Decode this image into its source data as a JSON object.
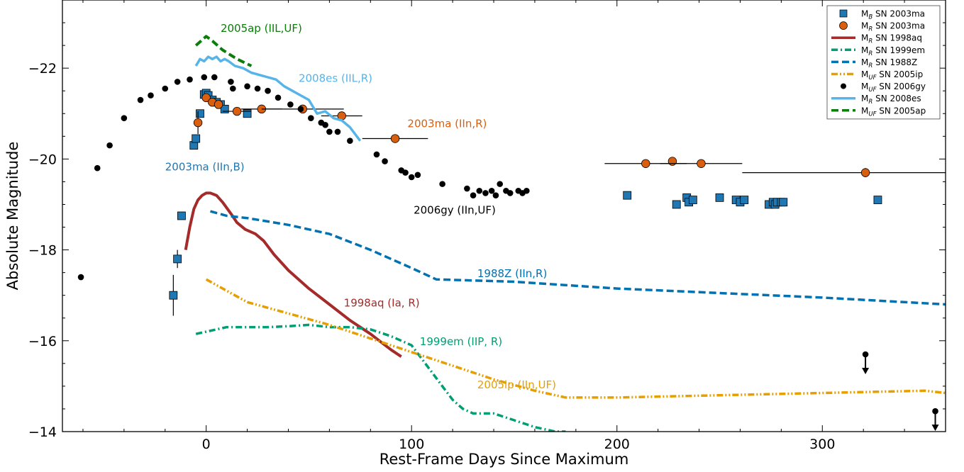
{
  "chart_data": {
    "type": "scatter",
    "xlabel": "Rest-Frame Days Since Maximum",
    "ylabel": "Absolute Magnitude",
    "xlim": [
      -70,
      360
    ],
    "ylim": [
      -14,
      -23.5
    ],
    "y_inverted": true,
    "xticks": [
      0,
      100,
      200,
      300
    ],
    "yticks": [
      -14,
      -16,
      -18,
      -20,
      -22
    ],
    "xtick_labels": [
      "0",
      "100",
      "200",
      "300"
    ],
    "ytick_labels": [
      "−14",
      "−16",
      "−18",
      "−20",
      "−22"
    ],
    "grid": false,
    "legend_position": "top-right",
    "series": [
      {
        "name": "M<sub>B</sub> SN 2003ma",
        "legend": {
          "main": "M",
          "sub": "B",
          "rest": " SN 2003ma"
        },
        "kind": "marker",
        "marker": "square",
        "color": "#1f77b4",
        "points": [
          {
            "x": -16,
            "y": -17.0,
            "yerr": 0.45
          },
          {
            "x": -14,
            "y": -17.8,
            "yerr": 0.2
          },
          {
            "x": -12,
            "y": -18.75
          },
          {
            "x": -6,
            "y": -20.3
          },
          {
            "x": -5,
            "y": -20.45
          },
          {
            "x": -3,
            "y": -21.0
          },
          {
            "x": -1,
            "y": -21.42
          },
          {
            "x": 0,
            "y": -21.45
          },
          {
            "x": 1,
            "y": -21.4
          },
          {
            "x": 3,
            "y": -21.3
          },
          {
            "x": 5,
            "y": -21.25
          },
          {
            "x": 7,
            "y": -21.2
          },
          {
            "x": 9,
            "y": -21.1
          },
          {
            "x": 20,
            "y": -21.0
          },
          {
            "x": 205,
            "y": -19.2
          },
          {
            "x": 229,
            "y": -19.0
          },
          {
            "x": 234,
            "y": -19.15
          },
          {
            "x": 235,
            "y": -19.05
          },
          {
            "x": 237,
            "y": -19.1
          },
          {
            "x": 250,
            "y": -19.15
          },
          {
            "x": 258,
            "y": -19.1
          },
          {
            "x": 260,
            "y": -19.05
          },
          {
            "x": 262,
            "y": -19.1
          },
          {
            "x": 274,
            "y": -19.0
          },
          {
            "x": 276,
            "y": -19.05
          },
          {
            "x": 277,
            "y": -19.0
          },
          {
            "x": 278,
            "y": -19.05
          },
          {
            "x": 280,
            "y": -19.05
          },
          {
            "x": 281,
            "y": -19.05
          },
          {
            "x": 327,
            "y": -19.1
          }
        ]
      },
      {
        "name": "M<sub>R</sub> SN 2003ma",
        "legend": {
          "main": "M",
          "sub": "R",
          "rest": " SN 2003ma"
        },
        "kind": "marker",
        "marker": "circle",
        "color": "#d95f0e",
        "points": [
          {
            "x": -4,
            "y": -20.8,
            "yerr": 0.25
          },
          {
            "x": 0,
            "y": -21.35
          },
          {
            "x": 3,
            "y": -21.25
          },
          {
            "x": 6,
            "y": -21.2
          },
          {
            "x": 15,
            "y": -21.05,
            "xerr": 7
          },
          {
            "x": 27,
            "y": -21.1,
            "xerr": 10
          },
          {
            "x": 47,
            "y": -21.1,
            "xerr": 20
          },
          {
            "x": 66,
            "y": -20.95,
            "xerr": 10
          },
          {
            "x": 92,
            "y": -20.45,
            "xerr": 16
          },
          {
            "x": 214,
            "y": -19.9,
            "xerr": 20
          },
          {
            "x": 227,
            "y": -19.95
          },
          {
            "x": 241,
            "y": -19.9,
            "xerr": 20
          },
          {
            "x": 321,
            "y": -19.7,
            "xerr": 60,
            "yerr": 0.1
          }
        ]
      },
      {
        "name": "M<sub>R</sub> SN 1998aq",
        "legend": {
          "main": "M",
          "sub": "R",
          "rest": " SN 1998aq"
        },
        "kind": "line",
        "dash": "solid",
        "width": 4,
        "color": "#a52a2a",
        "x": [
          -10,
          -8,
          -6,
          -4,
          -2,
          0,
          2,
          5,
          8,
          12,
          15,
          19,
          24,
          28,
          33,
          40,
          50,
          60,
          70,
          80,
          90,
          95
        ],
        "y": [
          -18.0,
          -18.5,
          -18.9,
          -19.1,
          -19.2,
          -19.25,
          -19.25,
          -19.2,
          -19.05,
          -18.8,
          -18.6,
          -18.45,
          -18.35,
          -18.2,
          -17.9,
          -17.55,
          -17.15,
          -16.8,
          -16.45,
          -16.15,
          -15.8,
          -15.65
        ]
      },
      {
        "name": "M<sub>R</sub> SN 1999em",
        "legend": {
          "main": "M",
          "sub": "R",
          "rest": " SN 1999em"
        },
        "kind": "line",
        "dash": "dashdot",
        "width": 3.5,
        "color": "#009e73",
        "x": [
          -5,
          0,
          5,
          10,
          20,
          30,
          40,
          50,
          60,
          70,
          80,
          90,
          100,
          105,
          110,
          115,
          120,
          125,
          130,
          140,
          150,
          160,
          170,
          175
        ],
        "y": [
          -16.15,
          -16.2,
          -16.25,
          -16.3,
          -16.3,
          -16.3,
          -16.32,
          -16.35,
          -16.3,
          -16.3,
          -16.25,
          -16.1,
          -15.9,
          -15.6,
          -15.3,
          -15.0,
          -14.7,
          -14.5,
          -14.4,
          -14.4,
          -14.25,
          -14.1,
          -14.0,
          -14.0
        ]
      },
      {
        "name": "M<sub>R</sub> SN 1988Z",
        "legend": {
          "main": "M",
          "sub": "R",
          "rest": " SN 1988Z"
        },
        "kind": "line",
        "dash": "dashed",
        "width": 3.5,
        "color": "#0072b2",
        "x": [
          2,
          10,
          20,
          40,
          60,
          80,
          100,
          112,
          150,
          200,
          250,
          300,
          360
        ],
        "y": [
          -18.85,
          -18.75,
          -18.7,
          -18.55,
          -18.35,
          -18.0,
          -17.6,
          -17.35,
          -17.3,
          -17.15,
          -17.05,
          -16.95,
          -16.8
        ]
      },
      {
        "name": "M<sub>UF</sub> SN 2005ip",
        "legend": {
          "main": "M",
          "sub": "UF",
          "rest": " SN 2005ip"
        },
        "kind": "line",
        "dash": "dashdotdot",
        "width": 3.5,
        "color": "#e69f00",
        "x": [
          0,
          10,
          20,
          40,
          60,
          80,
          100,
          120,
          140,
          160,
          175,
          200,
          250,
          300,
          350,
          360
        ],
        "y": [
          -17.35,
          -17.1,
          -16.85,
          -16.6,
          -16.35,
          -16.05,
          -15.75,
          -15.45,
          -15.15,
          -14.9,
          -14.75,
          -14.75,
          -14.8,
          -14.85,
          -14.9,
          -14.85
        ]
      },
      {
        "name": "M<sub>UF</sub> SN 2006gy",
        "legend": {
          "main": "M",
          "sub": "UF",
          "rest": " SN 2006gy"
        },
        "kind": "marker",
        "marker": "dot",
        "color": "#000000",
        "points": [
          {
            "x": -61,
            "y": -17.4
          },
          {
            "x": -53,
            "y": -19.8
          },
          {
            "x": -47,
            "y": -20.3
          },
          {
            "x": -40,
            "y": -20.9
          },
          {
            "x": -32,
            "y": -21.3
          },
          {
            "x": -27,
            "y": -21.4
          },
          {
            "x": -20,
            "y": -21.55
          },
          {
            "x": -14,
            "y": -21.7
          },
          {
            "x": -8,
            "y": -21.75
          },
          {
            "x": -1,
            "y": -21.8
          },
          {
            "x": 4,
            "y": -21.8
          },
          {
            "x": 12,
            "y": -21.7
          },
          {
            "x": 13,
            "y": -21.55
          },
          {
            "x": 20,
            "y": -21.6
          },
          {
            "x": 25,
            "y": -21.55
          },
          {
            "x": 30,
            "y": -21.5
          },
          {
            "x": 35,
            "y": -21.35
          },
          {
            "x": 41,
            "y": -21.2
          },
          {
            "x": 46,
            "y": -21.1
          },
          {
            "x": 51,
            "y": -20.9
          },
          {
            "x": 56,
            "y": -20.8
          },
          {
            "x": 58,
            "y": -20.75
          },
          {
            "x": 60,
            "y": -20.6
          },
          {
            "x": 64,
            "y": -20.6
          },
          {
            "x": 70,
            "y": -20.4
          },
          {
            "x": 83,
            "y": -20.1
          },
          {
            "x": 87,
            "y": -19.95
          },
          {
            "x": 95,
            "y": -19.75
          },
          {
            "x": 97,
            "y": -19.7
          },
          {
            "x": 100,
            "y": -19.6
          },
          {
            "x": 103,
            "y": -19.65
          },
          {
            "x": 115,
            "y": -19.45
          },
          {
            "x": 127,
            "y": -19.35
          },
          {
            "x": 130,
            "y": -19.2
          },
          {
            "x": 133,
            "y": -19.3
          },
          {
            "x": 136,
            "y": -19.25
          },
          {
            "x": 139,
            "y": -19.3
          },
          {
            "x": 141,
            "y": -19.2
          },
          {
            "x": 143,
            "y": -19.45
          },
          {
            "x": 146,
            "y": -19.3
          },
          {
            "x": 148,
            "y": -19.25
          },
          {
            "x": 152,
            "y": -19.3
          },
          {
            "x": 154,
            "y": -19.25
          },
          {
            "x": 156,
            "y": -19.3
          },
          {
            "x": 321,
            "y": -15.7,
            "upper_limit": true
          },
          {
            "x": 355,
            "y": -14.45,
            "upper_limit": true
          }
        ]
      },
      {
        "name": "M<sub>R</sub> SN 2008es",
        "legend": {
          "main": "M",
          "sub": "R",
          "rest": " SN 2008es"
        },
        "kind": "line",
        "dash": "solid",
        "width": 3.5,
        "color": "#56b4e9",
        "x": [
          -5,
          -3,
          -1,
          1,
          3,
          5,
          7,
          9,
          11,
          14,
          18,
          22,
          26,
          30,
          34,
          38,
          42,
          46,
          50,
          54,
          58,
          62,
          66,
          70,
          75
        ],
        "y": [
          -22.05,
          -22.2,
          -22.15,
          -22.25,
          -22.2,
          -22.25,
          -22.15,
          -22.2,
          -22.15,
          -22.05,
          -22.0,
          -21.9,
          -21.85,
          -21.8,
          -21.75,
          -21.6,
          -21.5,
          -21.4,
          -21.3,
          -21.0,
          -21.05,
          -20.9,
          -20.85,
          -20.7,
          -20.4
        ]
      },
      {
        "name": "M<sub>UF</sub> SN 2005ap",
        "legend": {
          "main": "M",
          "sub": "UF",
          "rest": " SN 2005ap"
        },
        "kind": "line",
        "dash": "dashed",
        "width": 4,
        "color": "#0a7d0a",
        "x": [
          -5,
          0,
          3,
          8,
          15,
          22
        ],
        "y": [
          -22.5,
          -22.7,
          -22.6,
          -22.4,
          -22.2,
          -22.05
        ]
      }
    ],
    "annotations": [
      {
        "text": "2005ap (IIL,UF)",
        "color": "#0a7d0a",
        "x": 7,
        "y": -22.8
      },
      {
        "text": "2008es (IIL,R)",
        "color": "#56b4e9",
        "x": 45,
        "y": -21.7
      },
      {
        "text": "2003ma (IIn,R)",
        "color": "#d95f0e",
        "x": 98,
        "y": -20.7
      },
      {
        "text": "2003ma (IIn,B)",
        "color": "#1f77b4",
        "x": -20,
        "y": -19.75
      },
      {
        "text": "2006gy (IIn,UF)",
        "color": "#000000",
        "x": 101,
        "y": -18.8
      },
      {
        "text": "1988Z (IIn,R)",
        "color": "#0072b2",
        "x": 132,
        "y": -17.4
      },
      {
        "text": "1998aq (Ia, R)",
        "color": "#a52a2a",
        "x": 67,
        "y": -16.75
      },
      {
        "text": "1999em (IIP, R)",
        "color": "#009e73",
        "x": 104,
        "y": -15.9
      },
      {
        "text": "2005ip (IIn,UF)",
        "color": "#e69f00",
        "x": 132,
        "y": -14.95
      }
    ]
  }
}
